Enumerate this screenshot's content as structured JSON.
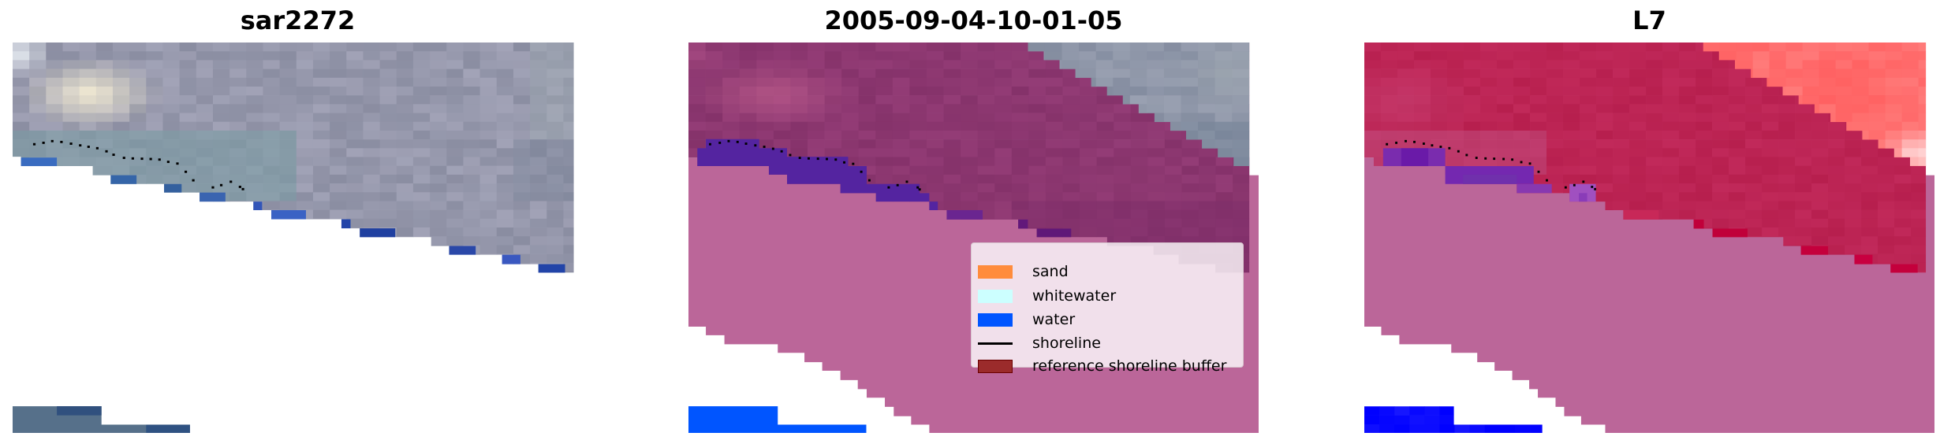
{
  "panels": [
    {
      "title": "sar2272"
    },
    {
      "title": "2005-09-04-10-01-05"
    },
    {
      "title": "L7"
    }
  ],
  "legend": {
    "placement": "lower-right of middle panel",
    "items": [
      {
        "label": "sand",
        "type": "patch",
        "color": "#ff8c3c"
      },
      {
        "label": "whitewater",
        "type": "patch",
        "color": "#ccffff"
      },
      {
        "label": "water",
        "type": "patch",
        "color": "#0055ff"
      },
      {
        "label": "shoreline",
        "type": "line",
        "color": "#000000"
      },
      {
        "label": "reference shoreline buffer",
        "type": "patch",
        "color": "#9b2b2b",
        "edge": "#7a0000"
      }
    ]
  },
  "colors": {
    "no_data_mask": "#bb6699",
    "water_overlay": "#0055ff",
    "shoreline": "#000000"
  }
}
